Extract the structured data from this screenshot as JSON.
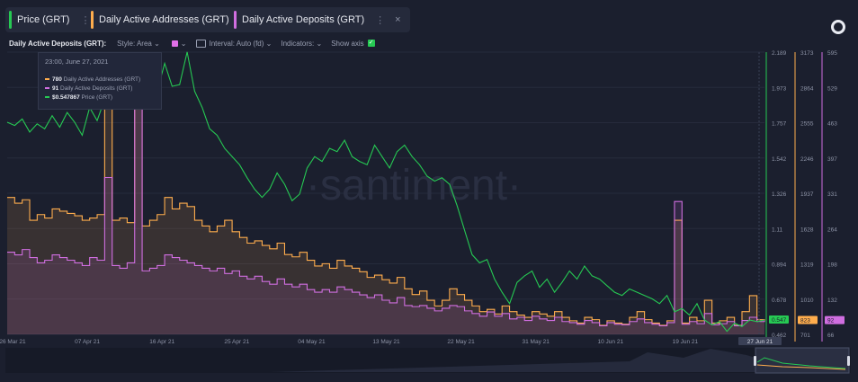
{
  "tabs": [
    {
      "label": "Price (GRT)",
      "color": "#26c953"
    },
    {
      "label": "Daily Active Addresses (GRT)",
      "color": "#ffad4d"
    },
    {
      "label": "Daily Active Deposits (GRT)",
      "color": "#d06ee0"
    }
  ],
  "toolbar": {
    "metric_label": "Daily Active Deposits (GRT):",
    "style_label": "Style: Area",
    "interval_label": "Interval: Auto (fd)",
    "indicators_label": "Indicators:",
    "show_axis_label": "Show axis"
  },
  "tooltip": {
    "date": "23:00, June 27, 2021",
    "rows": [
      {
        "value": "780",
        "label": "Daily Active Addresses (GRT)",
        "color": "#ffad4d"
      },
      {
        "value": "91",
        "label": "Daily Active Deposits (GRT)",
        "color": "#d06ee0"
      },
      {
        "value": "$0.547867",
        "label": "Price (GRT)",
        "color": "#26c953"
      }
    ]
  },
  "watermark": "·santiment·",
  "colors": {
    "price": "#26c953",
    "addresses": "#ffad4d",
    "deposits": "#d06ee0",
    "background": "#1b1f2e"
  },
  "chart_data": {
    "type": "line",
    "x_tick_labels": [
      "26 Mar 21",
      "07 Apr 21",
      "16 Apr 21",
      "25 Apr 21",
      "04 May 21",
      "13 May 21",
      "22 May 21",
      "31 May 21",
      "10 Jun 21",
      "19 Jun 21",
      "27 Jun 21"
    ],
    "axes": {
      "price": {
        "ticks": [
          "2.189",
          "1.973",
          "1.757",
          "1.542",
          "1.326",
          "1.11",
          "0.894",
          "0.678",
          "0.462"
        ],
        "ylim": [
          0.462,
          2.189
        ],
        "current_label": "0.547"
      },
      "addresses": {
        "ticks": [
          "3173",
          "2864",
          "2555",
          "2246",
          "1937",
          "1628",
          "1319",
          "1010",
          "701"
        ],
        "ylim": [
          701,
          3173
        ],
        "current_label": "823"
      },
      "deposits": {
        "ticks": [
          "595",
          "529",
          "463",
          "397",
          "331",
          "264",
          "198",
          "132",
          "66"
        ],
        "ylim": [
          66,
          595
        ],
        "current_label": "92"
      }
    },
    "series": [
      {
        "name": "Price (GRT)",
        "axis": "price",
        "style": "line",
        "values": [
          1.76,
          1.74,
          1.78,
          1.7,
          1.75,
          1.72,
          1.8,
          1.73,
          1.82,
          1.76,
          1.68,
          1.85,
          1.77,
          1.9,
          1.95,
          1.92,
          1.93,
          1.98,
          2.1,
          2.02,
          1.95,
          2.12,
          1.98,
          1.99,
          2.19,
          1.95,
          1.85,
          1.72,
          1.68,
          1.6,
          1.55,
          1.5,
          1.42,
          1.35,
          1.3,
          1.35,
          1.45,
          1.38,
          1.28,
          1.32,
          1.48,
          1.55,
          1.52,
          1.6,
          1.58,
          1.65,
          1.55,
          1.52,
          1.5,
          1.62,
          1.55,
          1.48,
          1.58,
          1.62,
          1.55,
          1.5,
          1.43,
          1.4,
          1.42,
          1.38,
          1.25,
          1.1,
          0.95,
          0.9,
          0.92,
          0.8,
          0.72,
          0.65,
          0.78,
          0.82,
          0.85,
          0.75,
          0.8,
          0.72,
          0.78,
          0.85,
          0.8,
          0.88,
          0.82,
          0.8,
          0.76,
          0.72,
          0.7,
          0.74,
          0.72,
          0.7,
          0.68,
          0.65,
          0.7,
          0.6,
          0.62,
          0.58,
          0.65,
          0.55,
          0.52,
          0.54,
          0.48,
          0.53,
          0.51,
          0.55,
          0.54,
          0.55
        ]
      },
      {
        "name": "Daily Active Addresses (GRT)",
        "axis": "addresses",
        "style": "area",
        "values": [
          1900,
          1850,
          1880,
          1700,
          1750,
          1720,
          1800,
          1780,
          1760,
          1740,
          1700,
          1720,
          1750,
          3060,
          1700,
          1720,
          1680,
          3120,
          1650,
          1700,
          1750,
          1900,
          1800,
          1850,
          1820,
          1700,
          1650,
          1600,
          1650,
          1700,
          1600,
          1550,
          1500,
          1520,
          1480,
          1450,
          1500,
          1400,
          1380,
          1420,
          1350,
          1300,
          1320,
          1280,
          1350,
          1300,
          1280,
          1250,
          1200,
          1220,
          1180,
          1150,
          1200,
          1100,
          1050,
          1080,
          1000,
          950,
          1000,
          1100,
          1050,
          1000,
          950,
          900,
          920,
          880,
          950,
          900,
          870,
          850,
          900,
          880,
          860,
          900,
          850,
          820,
          800,
          850,
          830,
          780,
          820,
          800,
          790,
          850,
          900,
          830,
          800,
          780,
          820,
          1700,
          800,
          850,
          820,
          1000,
          800,
          820,
          850,
          780,
          900,
          1040,
          830,
          823
        ]
      },
      {
        "name": "Daily Active Deposits (GRT)",
        "axis": "deposits",
        "style": "area",
        "values": [
          220,
          215,
          225,
          210,
          200,
          205,
          215,
          210,
          205,
          200,
          195,
          210,
          205,
          360,
          195,
          190,
          200,
          590,
          185,
          190,
          195,
          215,
          210,
          205,
          200,
          195,
          190,
          185,
          190,
          180,
          185,
          175,
          170,
          175,
          165,
          160,
          170,
          160,
          155,
          160,
          150,
          145,
          150,
          145,
          155,
          150,
          145,
          140,
          135,
          140,
          130,
          125,
          135,
          120,
          118,
          120,
          115,
          110,
          115,
          120,
          118,
          110,
          105,
          100,
          108,
          100,
          105,
          95,
          98,
          92,
          100,
          95,
          92,
          98,
          90,
          88,
          85,
          92,
          88,
          82,
          88,
          85,
          84,
          90,
          95,
          88,
          85,
          82,
          88,
          315,
          85,
          90,
          86,
          105,
          84,
          86,
          90,
          82,
          92,
          98,
          90,
          92
        ]
      }
    ]
  }
}
